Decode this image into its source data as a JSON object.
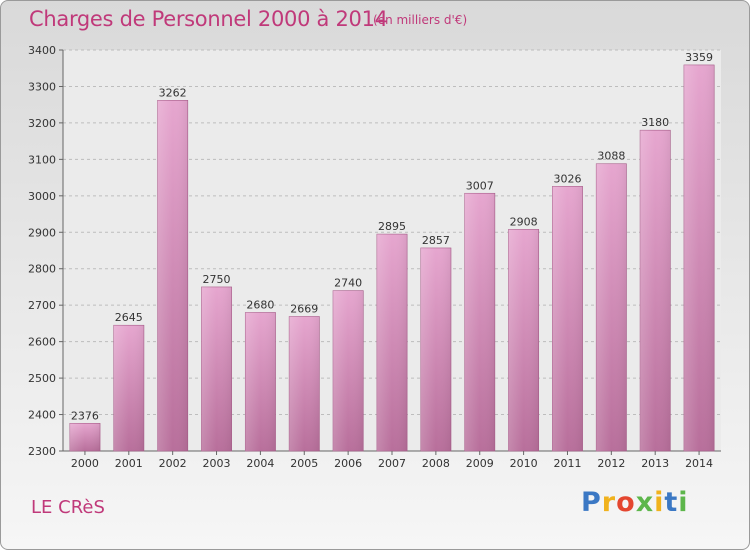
{
  "chart_data": {
    "type": "bar",
    "title": "Charges de Personnel 2000 à 2014",
    "subtitle": "(en milliers d'€)",
    "categories": [
      "2000",
      "2001",
      "2002",
      "2003",
      "2004",
      "2005",
      "2006",
      "2007",
      "2008",
      "2009",
      "2010",
      "2011",
      "2012",
      "2013",
      "2014"
    ],
    "values": [
      2376,
      2645,
      3262,
      2750,
      2680,
      2669,
      2740,
      2895,
      2857,
      3007,
      2908,
      3026,
      3088,
      3180,
      3359
    ],
    "ylim": [
      2300,
      3400
    ],
    "yticks": [
      2300,
      2400,
      2500,
      2600,
      2700,
      2800,
      2900,
      3000,
      3100,
      3200,
      3300,
      3400
    ],
    "xlabel": "",
    "ylabel": "",
    "grid": true,
    "bar_color": "#d48fb8"
  },
  "location": "LE CRèS",
  "brand": {
    "letters": [
      "P",
      "r",
      "o",
      "x",
      "i",
      "t",
      "i"
    ],
    "colors": [
      "#3b78c4",
      "#f0b21d",
      "#e4462f",
      "#5db64b",
      "#f0b21d",
      "#3b78c4",
      "#5db64b"
    ]
  }
}
